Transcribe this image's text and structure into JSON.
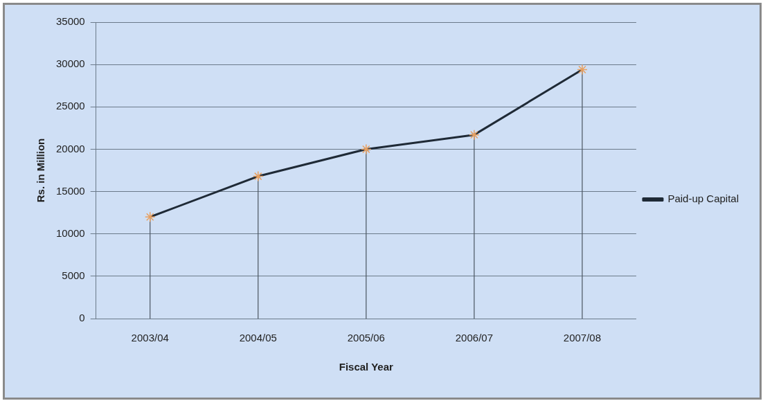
{
  "chart_data": {
    "type": "line",
    "xlabel": "Fiscal Year",
    "ylabel": "Rs. in Million",
    "categories": [
      "2003/04",
      "2004/05",
      "2005/06",
      "2006/07",
      "2007/08"
    ],
    "series": [
      {
        "name": "Paid-up Capital",
        "color": "#1f2a36",
        "values": [
          12000,
          16800,
          20000,
          21700,
          29400
        ],
        "errors": [
          [
            0,
            12000
          ],
          [
            0,
            16800
          ],
          [
            0,
            20000
          ],
          [
            0,
            21700
          ],
          [
            0,
            29400
          ]
        ]
      }
    ],
    "ylim": [
      0,
      35000
    ],
    "yticks": [
      0,
      5000,
      10000,
      15000,
      20000,
      25000,
      30000,
      35000
    ],
    "grid": "y",
    "legend": "right",
    "marker": "cross"
  }
}
